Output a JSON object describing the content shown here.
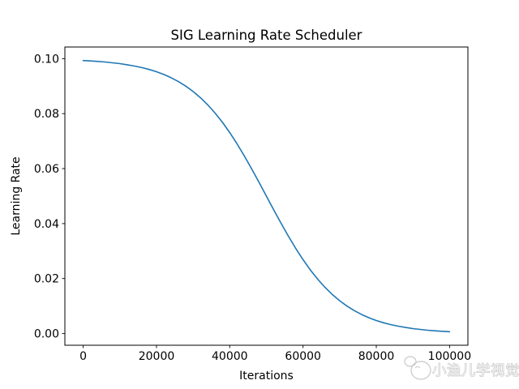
{
  "figure": {
    "background": "#ffffff",
    "spine_color": "#000000",
    "text_color": "#000000"
  },
  "chart_data": {
    "type": "line",
    "title": "SIG Learning Rate Scheduler",
    "xlabel": "Iterations",
    "ylabel": "Learning Rate",
    "xlim": [
      -5000,
      105000
    ],
    "ylim": [
      -0.00426,
      0.10426
    ],
    "grid": false,
    "legend": "none",
    "xticks": {
      "values": [
        0,
        20000,
        40000,
        60000,
        80000,
        100000
      ],
      "labels": [
        "0",
        "20000",
        "40000",
        "60000",
        "80000",
        "100000"
      ]
    },
    "yticks": {
      "values": [
        0.0,
        0.02,
        0.04,
        0.06,
        0.08,
        0.1
      ],
      "labels": [
        "0.00",
        "0.02",
        "0.04",
        "0.06",
        "0.08",
        "0.10"
      ]
    },
    "series": [
      {
        "name": "SIG learning rate schedule",
        "color": "#1f77b4",
        "line_width": 1.6,
        "x": [
          0,
          2000,
          4000,
          6000,
          8000,
          10000,
          12000,
          14000,
          16000,
          18000,
          20000,
          22000,
          24000,
          26000,
          28000,
          30000,
          32000,
          34000,
          36000,
          38000,
          40000,
          42000,
          44000,
          46000,
          48000,
          50000,
          52000,
          54000,
          56000,
          58000,
          60000,
          62000,
          64000,
          66000,
          68000,
          70000,
          72000,
          74000,
          76000,
          78000,
          80000,
          82000,
          84000,
          86000,
          88000,
          90000,
          92000,
          94000,
          96000,
          98000,
          100000
        ],
        "y": [
          0.09933,
          0.09918,
          0.099,
          0.09879,
          0.09852,
          0.0982,
          0.09781,
          0.09734,
          0.09677,
          0.09608,
          0.09526,
          0.09427,
          0.09309,
          0.09168,
          0.09002,
          0.08808,
          0.08581,
          0.0832,
          0.08022,
          0.07685,
          0.07311,
          0.069,
          0.06457,
          0.05987,
          0.05498,
          0.05,
          0.04502,
          0.04013,
          0.03543,
          0.031,
          0.02689,
          0.02315,
          0.01978,
          0.0168,
          0.01419,
          0.01192,
          0.00998,
          0.00832,
          0.00691,
          0.00573,
          0.00474,
          0.00392,
          0.00323,
          0.00266,
          0.00219,
          0.0018,
          0.00148,
          0.00121,
          0.001,
          0.00082,
          0.00067
        ]
      }
    ]
  },
  "watermark": {
    "text": "小渔儿学视觉",
    "icon": "cartoon-face-icon",
    "color": "#c6c6c6"
  }
}
